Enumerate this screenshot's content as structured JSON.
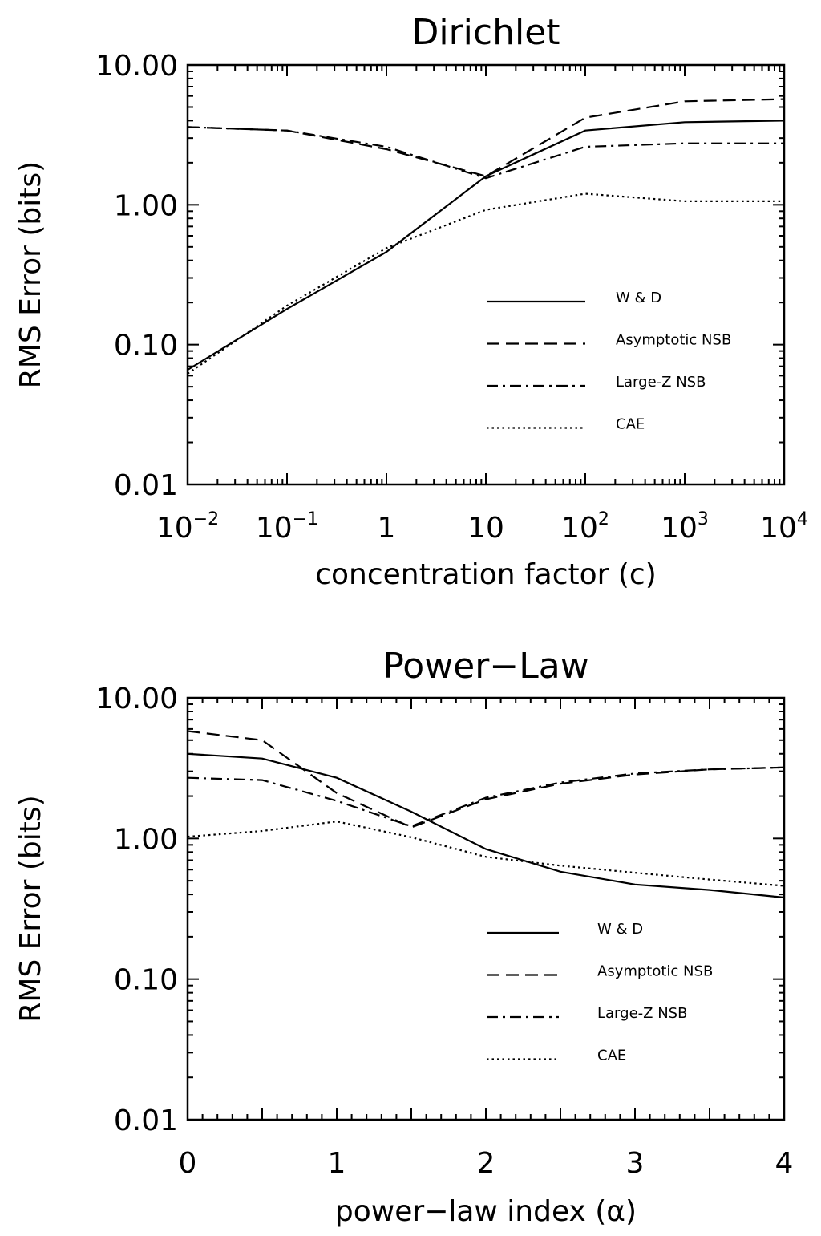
{
  "chart_data": [
    {
      "type": "line",
      "title": "Dirichlet",
      "xlabel": "concentration factor (c)",
      "ylabel": "RMS Error (bits)",
      "xscale": "log",
      "yscale": "log",
      "xlim": [
        0.01,
        10000
      ],
      "ylim": [
        0.01,
        10
      ],
      "x_ticks": [
        {
          "value": 0.01,
          "base": "10",
          "exp": "−2"
        },
        {
          "value": 0.1,
          "base": "10",
          "exp": "−1"
        },
        {
          "value": 1,
          "base": "1",
          "exp": ""
        },
        {
          "value": 10,
          "base": "10",
          "exp": ""
        },
        {
          "value": 100,
          "base": "10",
          "exp": "2"
        },
        {
          "value": 1000,
          "base": "10",
          "exp": "3"
        },
        {
          "value": 10000,
          "base": "10",
          "exp": "4"
        }
      ],
      "y_ticks": [
        {
          "value": 0.01,
          "label": "0.01"
        },
        {
          "value": 0.1,
          "label": "0.10"
        },
        {
          "value": 1,
          "label": "1.00"
        },
        {
          "value": 10,
          "label": "10.00"
        }
      ],
      "legend_position": "lower-right",
      "x": [
        0.01,
        0.1,
        1,
        10,
        100,
        1000,
        10000
      ],
      "series": [
        {
          "name": "W & D",
          "dash": "solid",
          "values": [
            0.066,
            0.18,
            0.46,
            1.6,
            3.4,
            3.9,
            4.0
          ]
        },
        {
          "name": "Asymptotic NSB",
          "dash": "dashed",
          "values": [
            3.6,
            3.4,
            2.5,
            1.6,
            4.2,
            5.5,
            5.7
          ]
        },
        {
          "name": "Large-Z NSB",
          "dash": "dashdot",
          "values": [
            3.6,
            3.4,
            2.6,
            1.55,
            2.6,
            2.75,
            2.75
          ]
        },
        {
          "name": "CAE",
          "dash": "dotted",
          "values": [
            0.062,
            0.19,
            0.49,
            0.92,
            1.2,
            1.06,
            1.06
          ]
        }
      ]
    },
    {
      "type": "line",
      "title": "Power−Law",
      "xlabel": "power−law index (α)",
      "ylabel": "RMS Error (bits)",
      "xscale": "linear",
      "yscale": "log",
      "xlim": [
        0,
        4
      ],
      "ylim": [
        0.01,
        10
      ],
      "x_ticks": [
        {
          "value": 0,
          "base": "0",
          "exp": ""
        },
        {
          "value": 1,
          "base": "1",
          "exp": ""
        },
        {
          "value": 2,
          "base": "2",
          "exp": ""
        },
        {
          "value": 3,
          "base": "3",
          "exp": ""
        },
        {
          "value": 4,
          "base": "4",
          "exp": ""
        }
      ],
      "y_ticks": [
        {
          "value": 0.01,
          "label": "0.01"
        },
        {
          "value": 0.1,
          "label": "0.10"
        },
        {
          "value": 1,
          "label": "1.00"
        },
        {
          "value": 10,
          "label": "10.00"
        }
      ],
      "legend_position": "lower-right",
      "x": [
        0,
        0.5,
        1,
        1.5,
        2,
        2.5,
        3,
        3.5,
        4
      ],
      "series": [
        {
          "name": "W & D",
          "dash": "solid",
          "values": [
            4.0,
            3.7,
            2.7,
            1.55,
            0.84,
            0.58,
            0.47,
            0.43,
            0.38
          ]
        },
        {
          "name": "Asymptotic NSB",
          "dash": "dashed",
          "values": [
            5.8,
            5.0,
            2.1,
            1.2,
            1.9,
            2.45,
            2.85,
            3.1,
            3.2
          ]
        },
        {
          "name": "Large-Z NSB",
          "dash": "dashdot",
          "values": [
            2.7,
            2.6,
            1.85,
            1.22,
            1.95,
            2.5,
            2.9,
            3.1,
            3.2
          ]
        },
        {
          "name": "CAE",
          "dash": "dotted",
          "values": [
            1.03,
            1.13,
            1.32,
            1.02,
            0.74,
            0.64,
            0.57,
            0.51,
            0.46
          ]
        }
      ]
    }
  ]
}
